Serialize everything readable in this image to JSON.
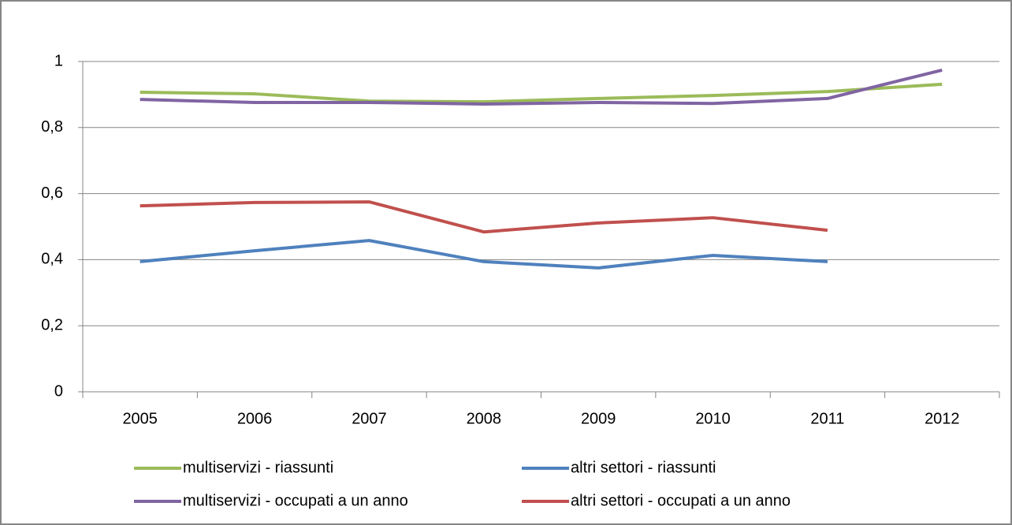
{
  "chart_data": {
    "type": "line",
    "categories": [
      "2005",
      "2006",
      "2007",
      "2008",
      "2009",
      "2010",
      "2011",
      "2012"
    ],
    "series": [
      {
        "name": "multiservizi - riassunti",
        "color": "#9bbb59",
        "values": [
          0.907,
          0.902,
          0.88,
          0.878,
          0.888,
          0.897,
          0.909,
          0.931
        ]
      },
      {
        "name": "altri settori - riassunti",
        "color": "#4f81bd",
        "values": [
          0.394,
          0.427,
          0.458,
          0.394,
          0.375,
          0.413,
          0.394,
          null
        ]
      },
      {
        "name": "multiservizi - occupati a un anno",
        "color": "#8064a2",
        "values": [
          0.885,
          0.876,
          0.876,
          0.871,
          0.876,
          0.873,
          0.888,
          0.974
        ]
      },
      {
        "name": "altri settori - occupati a un anno",
        "color": "#c0504d",
        "values": [
          0.563,
          0.573,
          0.575,
          0.484,
          0.511,
          0.527,
          0.489,
          null
        ]
      }
    ],
    "ylim": [
      0,
      1
    ],
    "yticks": [
      0,
      {
        "value": 0.2,
        "label": "0,2"
      },
      {
        "value": 0.4,
        "label": "0,4"
      },
      {
        "value": 0.6,
        "label": "0,6"
      },
      {
        "value": 0.8,
        "label": "0,8"
      },
      1
    ],
    "grid": true
  }
}
